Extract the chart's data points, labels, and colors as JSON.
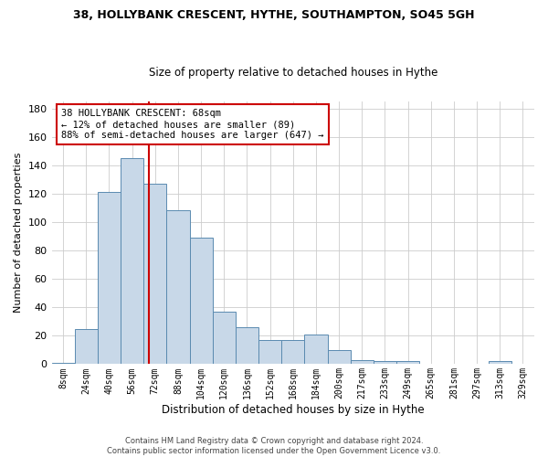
{
  "title1": "38, HOLLYBANK CRESCENT, HYTHE, SOUTHAMPTON, SO45 5GH",
  "title2": "Size of property relative to detached houses in Hythe",
  "xlabel": "Distribution of detached houses by size in Hythe",
  "ylabel": "Number of detached properties",
  "bin_labels": [
    "8sqm",
    "24sqm",
    "40sqm",
    "56sqm",
    "72sqm",
    "88sqm",
    "104sqm",
    "120sqm",
    "136sqm",
    "152sqm",
    "168sqm",
    "184sqm",
    "200sqm",
    "217sqm",
    "233sqm",
    "249sqm",
    "265sqm",
    "281sqm",
    "297sqm",
    "313sqm",
    "329sqm"
  ],
  "bar_heights": [
    1,
    25,
    121,
    145,
    127,
    108,
    89,
    37,
    26,
    17,
    17,
    21,
    10,
    3,
    2,
    2,
    0,
    0,
    0,
    2,
    0
  ],
  "bar_color": "#c8d8e8",
  "bar_edge_color": "#5a8ab0",
  "vline_x": 3.75,
  "annotation_line1": "38 HOLLYBANK CRESCENT: 68sqm",
  "annotation_line2": "← 12% of detached houses are smaller (89)",
  "annotation_line3": "88% of semi-detached houses are larger (647) →",
  "annotation_box_color": "#ffffff",
  "annotation_box_edge_color": "#cc0000",
  "footer_text": "Contains HM Land Registry data © Crown copyright and database right 2024.\nContains public sector information licensed under the Open Government Licence v3.0.",
  "ylim": [
    0,
    185
  ],
  "yticks": [
    0,
    20,
    40,
    60,
    80,
    100,
    120,
    140,
    160,
    180
  ],
  "background_color": "#ffffff",
  "grid_color": "#cccccc"
}
